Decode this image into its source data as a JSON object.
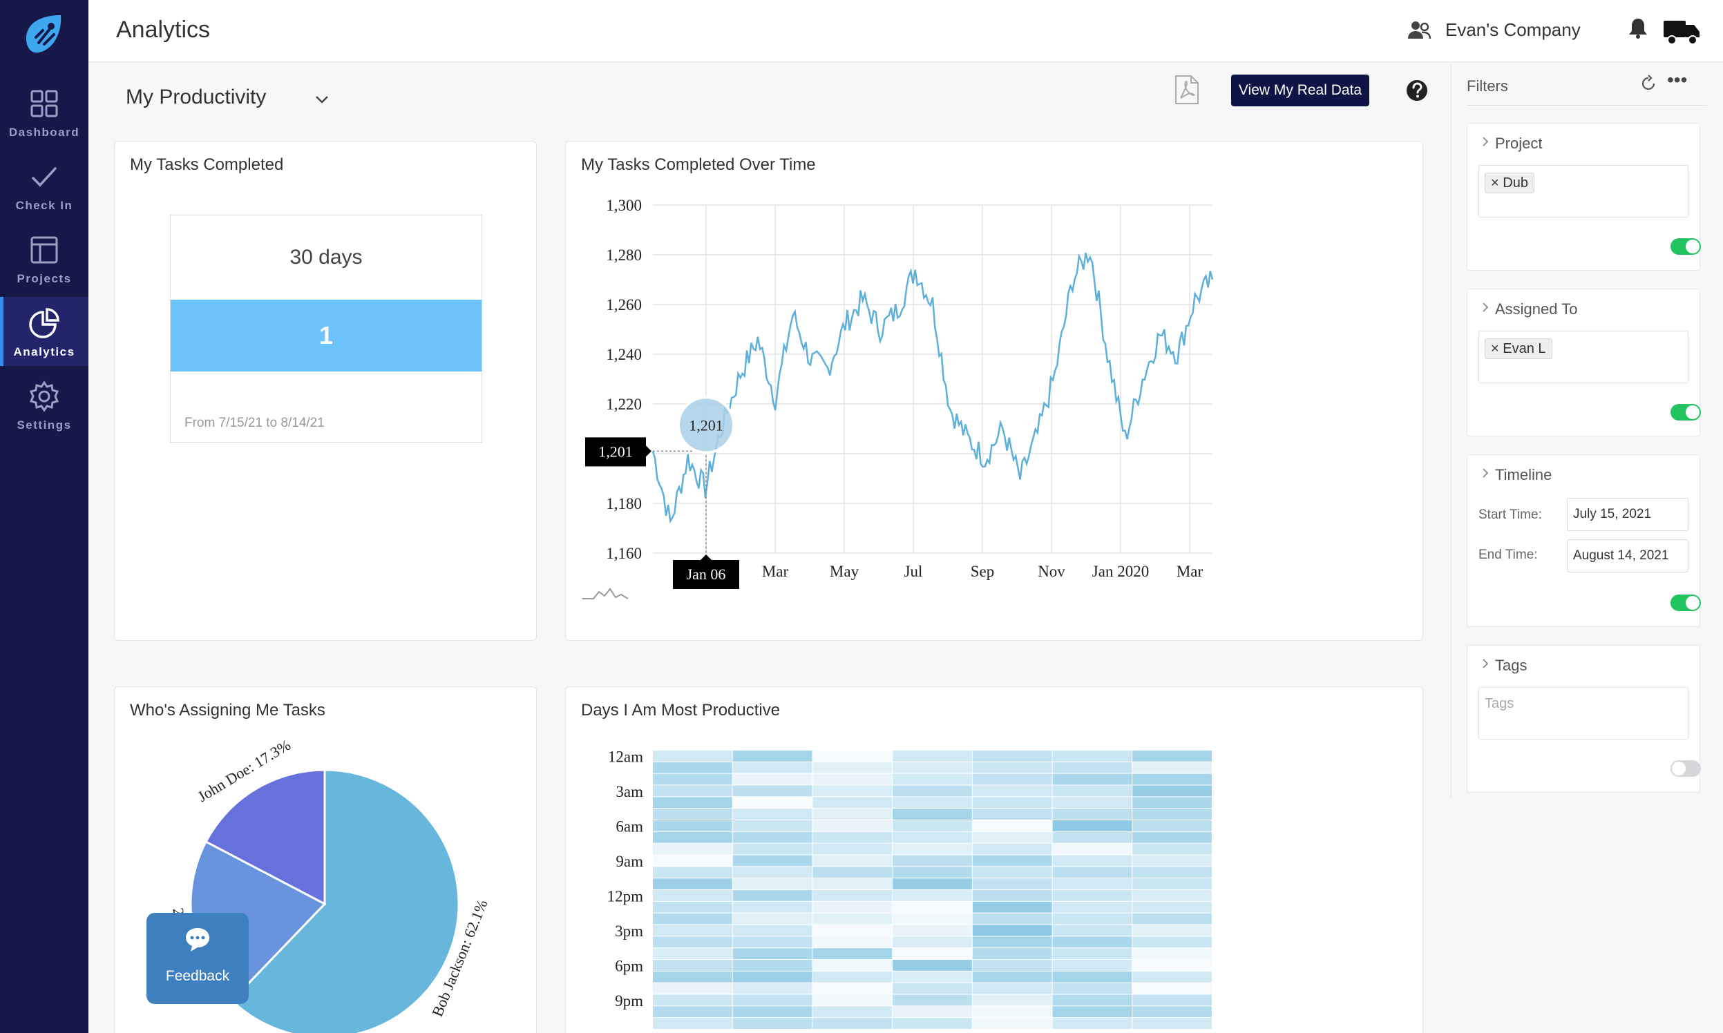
{
  "sidebar": {
    "items": [
      {
        "label": "Dashboard",
        "icon": "grid-icon"
      },
      {
        "label": "Check In",
        "icon": "checkmark-icon"
      },
      {
        "label": "Projects",
        "icon": "layout-icon"
      },
      {
        "label": "Analytics",
        "icon": "pie-chart-icon",
        "active": true
      },
      {
        "label": "Settings",
        "icon": "gear-icon"
      }
    ]
  },
  "header": {
    "title": "Analytics",
    "company": "Evan's Company"
  },
  "toolbar": {
    "view_selector": "My Productivity",
    "real_data_label": "View My Real Data"
  },
  "tasks_completed": {
    "title": "My Tasks Completed",
    "period": "30 days",
    "count": "1",
    "range": "From 7/15/21 to 8/14/21"
  },
  "over_time": {
    "title": "My Tasks Completed Over Time",
    "tooltip_value": "1,201",
    "tooltip_y": "1,201",
    "tooltip_x": "Jan 06"
  },
  "assigners": {
    "title": "Who's Assigning Me Tasks"
  },
  "productive_days": {
    "title": "Days I Am Most Productive"
  },
  "filters": {
    "title": "Filters",
    "project": {
      "title": "Project",
      "chip": "Dub"
    },
    "assigned_to": {
      "title": "Assigned To",
      "chip": "Evan L"
    },
    "timeline": {
      "title": "Timeline",
      "start_label": "Start Time:",
      "start_value": "July 15, 2021",
      "end_label": "End Time:",
      "end_value": "August 14, 2021"
    },
    "tags": {
      "title": "Tags",
      "placeholder": "Tags"
    }
  },
  "feedback_label": "Feedback",
  "colors": {
    "sidebar": "#16184a",
    "accent": "#6cc3fb",
    "line": "#5fb0d8",
    "pie_main": "#67b7dc",
    "pie_b": "#6794dc",
    "pie_c": "#6771dc",
    "toggle_on": "#21c45e",
    "button_dark": "#0e1445"
  },
  "chart_data": [
    {
      "type": "line",
      "title": "My Tasks Completed Over Time",
      "x_ticks": [
        "Jan 06",
        "Mar",
        "May",
        "Jul",
        "Sep",
        "Nov",
        "Jan 2020",
        "Mar"
      ],
      "y_ticks": [
        "1,160",
        "1,180",
        "1,200",
        "1,220",
        "1,240",
        "1,260",
        "1,280",
        "1,300"
      ],
      "ylim": [
        1160,
        1300
      ],
      "series": [
        {
          "x": [
            "Jan 06",
            "Jan 20",
            "Feb 03",
            "Feb 17",
            "Mar 03",
            "Mar 17",
            "Mar 31",
            "Apr 14",
            "Apr 28",
            "May 12",
            "May 26",
            "Jun 09",
            "Jun 23",
            "Jul 07",
            "Jul 21",
            "Aug 04",
            "Aug 18",
            "Sep 01",
            "Sep 15",
            "Sep 29",
            "Oct 13",
            "Oct 27",
            "Nov 10",
            "Nov 24",
            "Dec 08",
            "Dec 22",
            "Jan 05",
            "Jan 19",
            "Feb 02",
            "Feb 16",
            "Mar 02",
            "Mar 16",
            "Mar 30"
          ],
          "values": [
            1201,
            1172,
            1198,
            1186,
            1212,
            1232,
            1246,
            1222,
            1256,
            1238,
            1234,
            1252,
            1262,
            1250,
            1258,
            1274,
            1260,
            1218,
            1206,
            1198,
            1210,
            1190,
            1208,
            1232,
            1270,
            1282,
            1240,
            1206,
            1230,
            1248,
            1240,
            1262,
            1270
          ]
        }
      ]
    },
    {
      "type": "pie",
      "title": "Who's Assigning Me Tasks",
      "slices": [
        {
          "label": "Bob Jackson",
          "value": 62.1
        },
        {
          "label": "",
          "value": 20.5
        },
        {
          "label": "John Doe",
          "value": 17.3
        }
      ],
      "slice_labels": [
        "Bob Jackson: 62.1%",
        "20.5%",
        "John Doe: 17.3%"
      ]
    },
    {
      "type": "heatmap",
      "title": "Days I Am Most Productive",
      "y_ticks": [
        "12am",
        "3am",
        "6am",
        "9am",
        "12pm",
        "3pm",
        "6pm",
        "9pm"
      ],
      "columns": 7,
      "rows": 24,
      "values": [
        [
          0.3,
          0.6,
          0.05,
          0.3,
          0.4,
          0.35,
          0.6
        ],
        [
          0.55,
          0.3,
          0.2,
          0.25,
          0.35,
          0.4,
          0.2
        ],
        [
          0.5,
          0.15,
          0.15,
          0.3,
          0.4,
          0.55,
          0.6
        ],
        [
          0.4,
          0.45,
          0.25,
          0.45,
          0.3,
          0.35,
          0.7
        ],
        [
          0.6,
          0.05,
          0.3,
          0.3,
          0.35,
          0.3,
          0.55
        ],
        [
          0.45,
          0.3,
          0.2,
          0.6,
          0.4,
          0.45,
          0.5
        ],
        [
          0.55,
          0.35,
          0.15,
          0.35,
          0.05,
          0.75,
          0.45
        ],
        [
          0.6,
          0.5,
          0.35,
          0.3,
          0.2,
          0.4,
          0.55
        ],
        [
          0.15,
          0.35,
          0.3,
          0.2,
          0.3,
          0.1,
          0.35
        ],
        [
          0.05,
          0.55,
          0.2,
          0.45,
          0.55,
          0.3,
          0.25
        ],
        [
          0.35,
          0.3,
          0.45,
          0.5,
          0.35,
          0.45,
          0.4
        ],
        [
          0.65,
          0.2,
          0.2,
          0.7,
          0.4,
          0.3,
          0.35
        ],
        [
          0.3,
          0.55,
          0.3,
          0.25,
          0.45,
          0.35,
          0.25
        ],
        [
          0.4,
          0.3,
          0.15,
          0.05,
          0.7,
          0.3,
          0.3
        ],
        [
          0.5,
          0.2,
          0.2,
          0.1,
          0.45,
          0.35,
          0.45
        ],
        [
          0.3,
          0.3,
          0.05,
          0.15,
          0.75,
          0.35,
          0.2
        ],
        [
          0.45,
          0.4,
          0.1,
          0.25,
          0.6,
          0.55,
          0.35
        ],
        [
          0.25,
          0.55,
          0.6,
          0.05,
          0.5,
          0.35,
          0.1
        ],
        [
          0.4,
          0.5,
          0.1,
          0.7,
          0.4,
          0.3,
          0.05
        ],
        [
          0.6,
          0.65,
          0.3,
          0.25,
          0.55,
          0.6,
          0.3
        ],
        [
          0.15,
          0.25,
          0.05,
          0.35,
          0.3,
          0.4,
          0.05
        ],
        [
          0.35,
          0.4,
          0.1,
          0.45,
          0.2,
          0.5,
          0.4
        ],
        [
          0.5,
          0.55,
          0.3,
          0.15,
          0.1,
          0.6,
          0.5
        ],
        [
          0.3,
          0.45,
          0.4,
          0.35,
          0.1,
          0.3,
          0.3
        ]
      ]
    }
  ]
}
